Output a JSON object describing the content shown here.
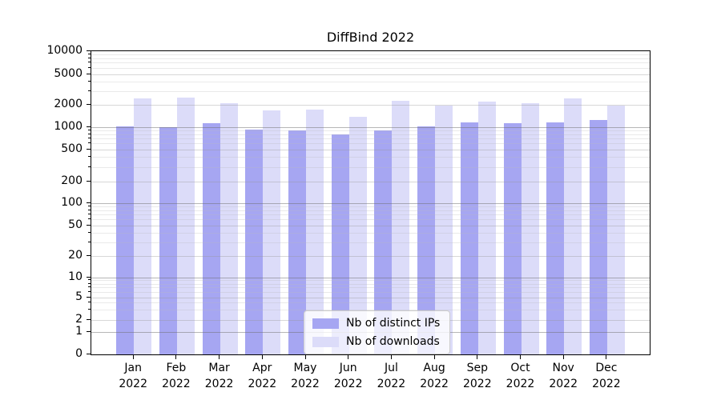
{
  "page": {
    "background": "#ffffff"
  },
  "chart_data": {
    "type": "bar",
    "title": "DiffBind 2022",
    "categories": [
      "Jan 2022",
      "Feb 2022",
      "Mar 2022",
      "Apr 2022",
      "May 2022",
      "Jun 2022",
      "Jul 2022",
      "Aug 2022",
      "Sep 2022",
      "Oct 2022",
      "Nov 2022",
      "Dec 2022"
    ],
    "x_tick_line1": [
      "Jan",
      "Feb",
      "Mar",
      "Apr",
      "May",
      "Jun",
      "Jul",
      "Aug",
      "Sep",
      "Oct",
      "Nov",
      "Dec"
    ],
    "x_tick_line2": [
      "2022",
      "2022",
      "2022",
      "2022",
      "2022",
      "2022",
      "2022",
      "2022",
      "2022",
      "2022",
      "2022",
      "2022"
    ],
    "series": [
      {
        "name": "Nb of distinct IPs",
        "color": "#a6a6f2",
        "values": [
          1035,
          1000,
          1130,
          930,
          915,
          800,
          900,
          1030,
          1170,
          1140,
          1170,
          1240
        ]
      },
      {
        "name": "Nb of downloads",
        "color": "#dcdcf9",
        "values": [
          2430,
          2500,
          2100,
          1670,
          1730,
          1390,
          2250,
          1940,
          2210,
          2120,
          2400,
          1940
        ]
      }
    ],
    "y_ticks": [
      0,
      1,
      2,
      5,
      10,
      20,
      50,
      100,
      200,
      500,
      1000,
      2000,
      5000,
      10000
    ],
    "y_scale": "log (labeled 1-2-5 decades, 0 at baseline)",
    "ylim": [
      0,
      10000
    ],
    "grid": true,
    "legend": {
      "position": "lower center"
    }
  }
}
